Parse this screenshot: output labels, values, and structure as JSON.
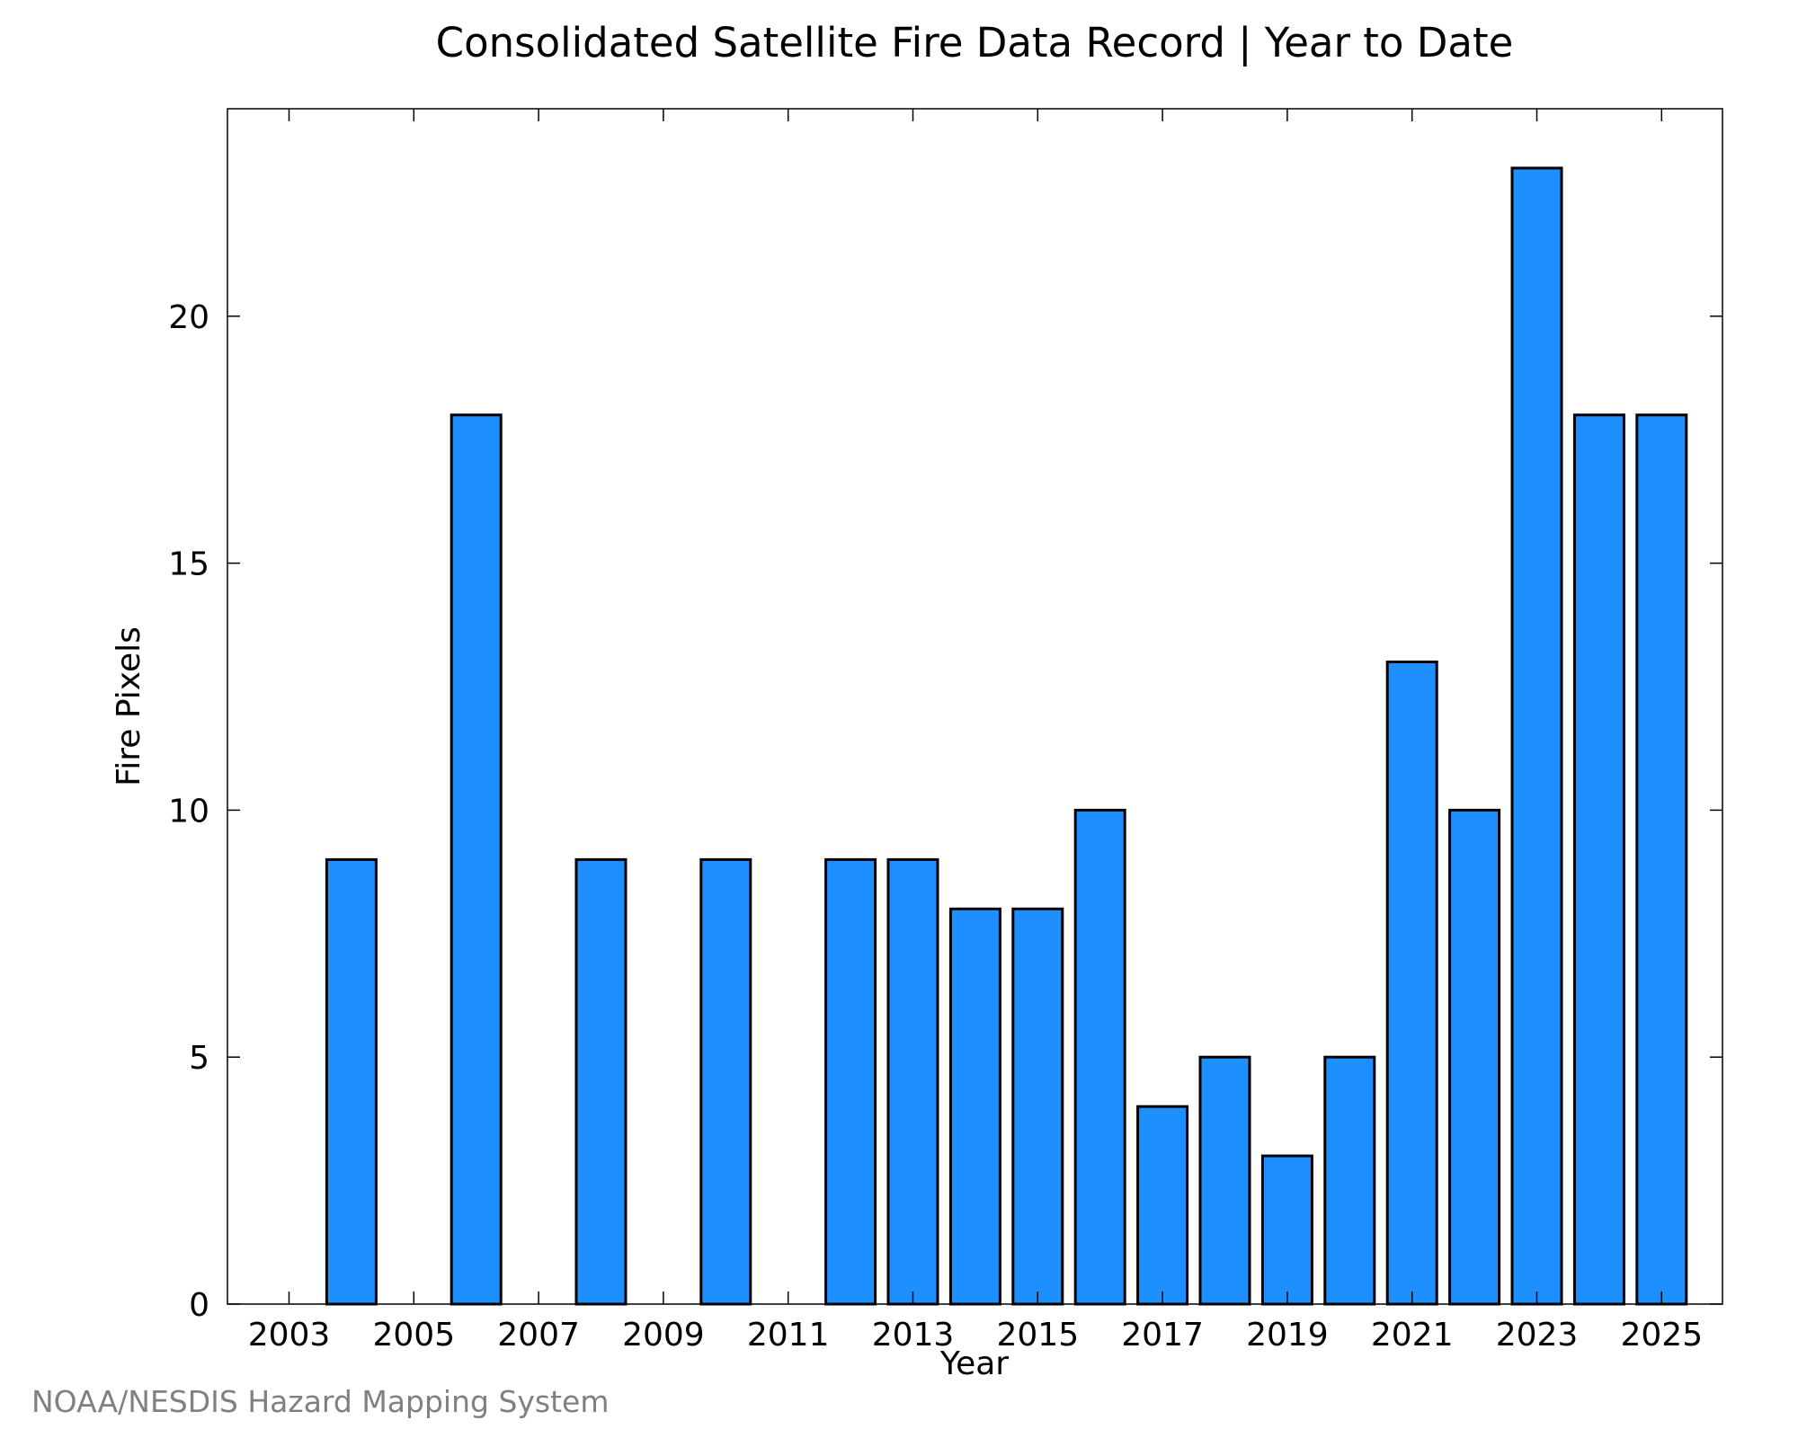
{
  "chart_data": {
    "type": "bar",
    "title": "Consolidated Satellite Fire Data Record | Year to Date",
    "xlabel": "Year",
    "ylabel": "Fire Pixels",
    "categories": [
      "2003",
      "2004",
      "2005",
      "2006",
      "2007",
      "2008",
      "2009",
      "2010",
      "2011",
      "2012",
      "2013",
      "2014",
      "2015",
      "2016",
      "2017",
      "2018",
      "2019",
      "2020",
      "2021",
      "2022",
      "2023",
      "2024",
      "2025"
    ],
    "values": [
      0,
      9,
      0,
      18,
      0,
      9,
      0,
      9,
      0,
      9,
      9,
      8,
      8,
      10,
      4,
      5,
      3,
      5,
      13,
      10,
      23,
      18,
      18
    ],
    "x_tick_labels": [
      "2003",
      "2005",
      "2007",
      "2009",
      "2011",
      "2013",
      "2015",
      "2017",
      "2019",
      "2021",
      "2023",
      "2025"
    ],
    "y_tick_labels": [
      "0",
      "5",
      "10",
      "15",
      "20"
    ],
    "ylim": [
      0,
      24.2
    ],
    "grid": false,
    "legend": "none",
    "bar_color": "#1E8FFF",
    "bar_edge_color": "#000000"
  },
  "footer": {
    "credit": "NOAA/NESDIS Hazard Mapping System"
  }
}
